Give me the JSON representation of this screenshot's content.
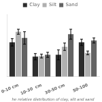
{
  "chart_data": {
    "type": "bar",
    "xlabel": "he relative distribution of clay, silt and sand",
    "categories": [
      "0-10 cm",
      "10-30  cm",
      "30-50 cm",
      "50-100"
    ],
    "series": [
      {
        "name": "Clay",
        "color": "#2d2d2d",
        "values": [
          55,
          32,
          35,
          55
        ],
        "errors": [
          6,
          5,
          8,
          5
        ]
      },
      {
        "name": "Silt",
        "color": "#b0b0b0",
        "values": [
          72,
          33,
          48,
          38
        ],
        "errors": [
          4,
          3,
          6,
          3
        ]
      },
      {
        "name": "Sand",
        "color": "#636363",
        "values": [
          62,
          35,
          68,
          58
        ],
        "errors": [
          10,
          4,
          8,
          4
        ]
      }
    ],
    "ylim": [
      0,
      100
    ],
    "grid": false,
    "legend": "top",
    "tick_labels": "x"
  }
}
